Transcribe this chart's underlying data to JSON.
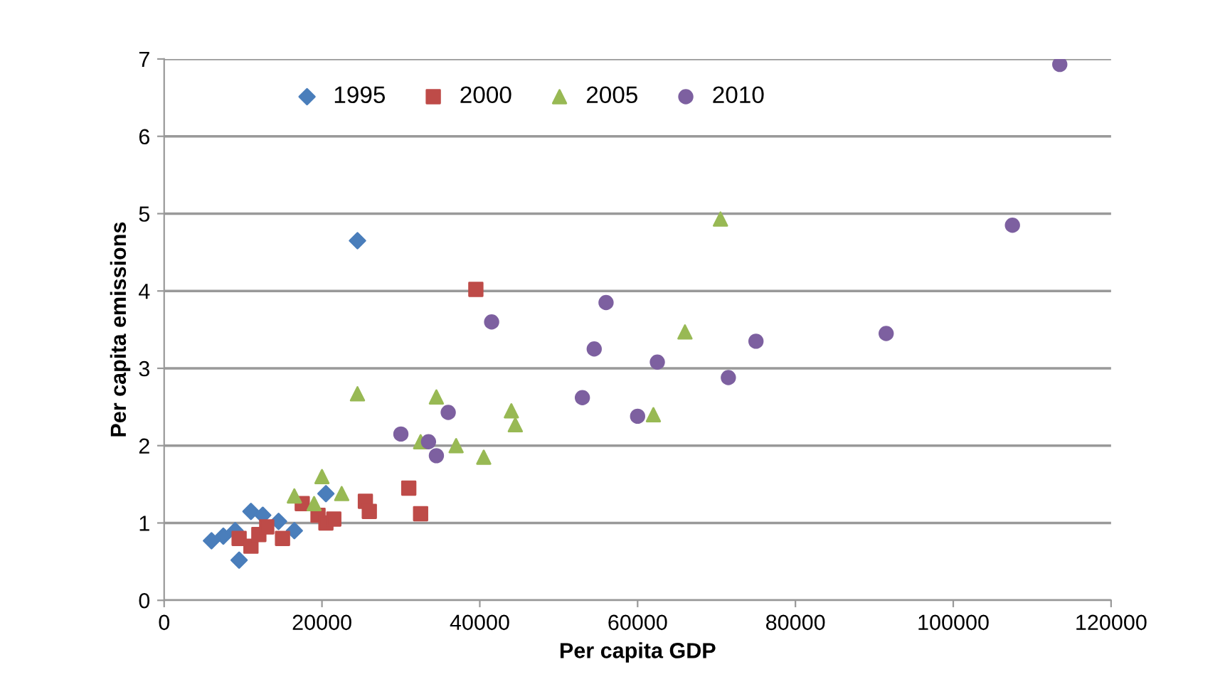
{
  "chart_data": {
    "type": "scatter",
    "xlabel": "Per capita GDP",
    "ylabel": "Per capita emissions",
    "xlim": [
      0,
      120000
    ],
    "xticks": [
      0,
      20000,
      40000,
      60000,
      80000,
      100000,
      120000
    ],
    "ylim": [
      0,
      7
    ],
    "yticks": [
      0,
      1,
      2,
      3,
      4,
      5,
      6,
      7
    ],
    "grid": "y",
    "legend": "top",
    "series": [
      {
        "name": "1995",
        "color": "#4a7ebb",
        "marker": "diamond",
        "x": [
          6000,
          7500,
          9000,
          9500,
          11000,
          12500,
          14500,
          16500,
          20500,
          24500
        ],
        "values": [
          0.77,
          0.83,
          0.9,
          0.52,
          1.15,
          1.1,
          1.02,
          0.9,
          1.38,
          4.65
        ]
      },
      {
        "name": "2000",
        "color": "#be4b48",
        "marker": "square",
        "x": [
          9500,
          11000,
          12000,
          13000,
          15000,
          17500,
          19500,
          20500,
          21500,
          25500,
          26000,
          31000,
          32500,
          39500
        ],
        "values": [
          0.8,
          0.7,
          0.85,
          0.95,
          0.8,
          1.25,
          1.1,
          1.0,
          1.05,
          1.28,
          1.15,
          1.45,
          1.12,
          4.02
        ]
      },
      {
        "name": "2005",
        "color": "#98b954",
        "marker": "triangle",
        "x": [
          16500,
          19000,
          20000,
          22500,
          24500,
          32500,
          34500,
          37000,
          40500,
          44000,
          44500,
          62000,
          66000,
          70500
        ],
        "values": [
          1.35,
          1.25,
          1.6,
          1.38,
          2.67,
          2.05,
          2.63,
          2.0,
          1.85,
          2.45,
          2.27,
          2.4,
          3.47,
          4.93
        ]
      },
      {
        "name": "2010",
        "color": "#7d60a0",
        "marker": "circle",
        "x": [
          30000,
          33500,
          34500,
          36000,
          41500,
          53000,
          54500,
          56000,
          60000,
          62500,
          71500,
          75000,
          91500,
          107500,
          113500
        ],
        "values": [
          2.15,
          2.05,
          1.87,
          2.43,
          3.6,
          2.62,
          3.25,
          3.85,
          2.38,
          3.08,
          2.88,
          3.35,
          3.45,
          4.85,
          6.93
        ]
      }
    ]
  }
}
